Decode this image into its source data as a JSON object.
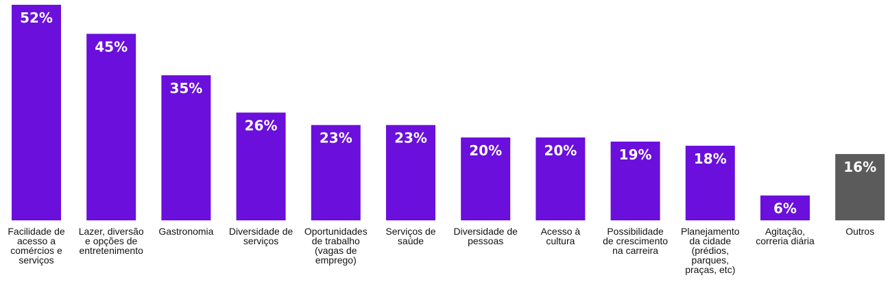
{
  "chart_data": {
    "type": "bar",
    "categories": [
      [
        "Facilidade de",
        "acesso a",
        "comércios e",
        "serviços"
      ],
      [
        "Lazer, diversão",
        "e opções de",
        "entretenimento"
      ],
      [
        "Gastronomia"
      ],
      [
        "Diversidade de",
        "serviços"
      ],
      [
        "Oportunidades",
        "de trabalho",
        "(vagas de",
        "emprego)"
      ],
      [
        "Serviços de",
        "saúde"
      ],
      [
        "Diversidade de",
        "pessoas"
      ],
      [
        "Acesso à",
        "cultura"
      ],
      [
        "Possibilidade",
        "de crescimento",
        "na carreira"
      ],
      [
        "Planejamento",
        "da cidade",
        "(prédios,",
        "parques,",
        "praças, etc)"
      ],
      [
        "Agitação,",
        "correria diária"
      ],
      [
        "Outros"
      ]
    ],
    "values": [
      52,
      45,
      35,
      26,
      23,
      23,
      20,
      20,
      19,
      18,
      6,
      16
    ],
    "value_labels": [
      "52%",
      "45%",
      "35%",
      "26%",
      "23%",
      "23%",
      "20%",
      "20%",
      "19%",
      "18%",
      "6%",
      "16%"
    ],
    "colors": {
      "primary": "#6a0fdc",
      "other": "#5b5b5b"
    },
    "bar_colors": [
      "primary",
      "primary",
      "primary",
      "primary",
      "primary",
      "primary",
      "primary",
      "primary",
      "primary",
      "primary",
      "primary",
      "other"
    ],
    "ylim": [
      0,
      52
    ],
    "grid": false,
    "legend": "none"
  }
}
